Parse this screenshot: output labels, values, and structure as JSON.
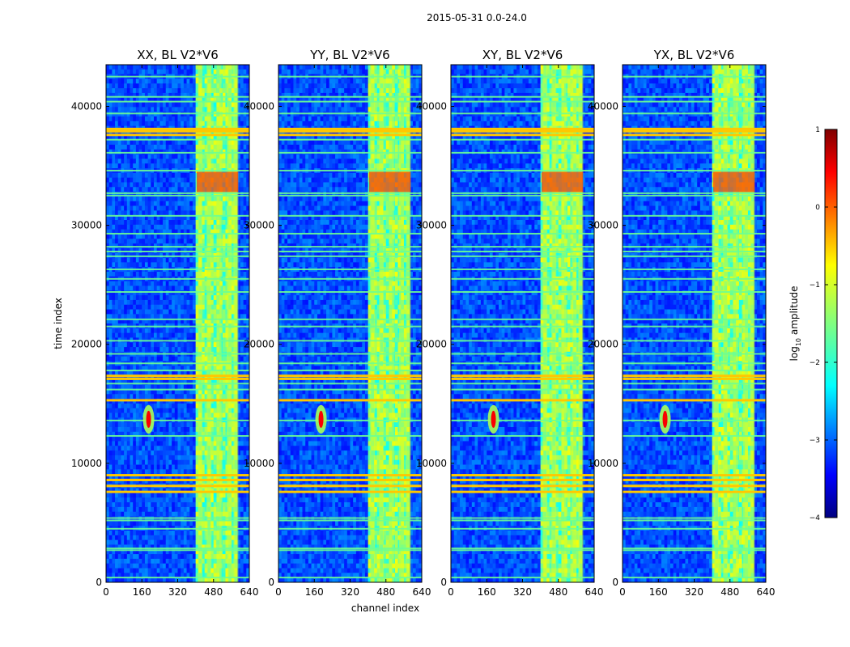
{
  "figure": {
    "suptitle": "2015-05-31 0.0-24.0",
    "xlabel": "channel index",
    "ylabel": "time index"
  },
  "colorbar": {
    "label_main": "log",
    "label_sub": "10",
    "label_tail": " amplitude",
    "ticks": [
      1,
      0,
      -1,
      -2,
      -3,
      -4
    ],
    "tick_labels": [
      "1",
      "0",
      "−1",
      "−2",
      "−3",
      "−4"
    ],
    "range": [
      -4,
      1
    ],
    "colormap": "jet"
  },
  "chart_data": {
    "type": "heatmap",
    "x_range": [
      0,
      640
    ],
    "y_range": [
      0,
      43500
    ],
    "x_ticks": [
      0,
      160,
      320,
      480,
      640
    ],
    "y_ticks": [
      0,
      10000,
      20000,
      30000,
      40000
    ],
    "panels": [
      {
        "title": "XX, BL V2*V6"
      },
      {
        "title": "YY, BL V2*V6"
      },
      {
        "title": "XY, BL V2*V6"
      },
      {
        "title": "YX, BL V2*V6"
      }
    ],
    "rfi_channel_band": [
      405,
      590
    ],
    "rfi_channel_columns": [
      420,
      460,
      505,
      550,
      580
    ],
    "strong_rows": [
      7600,
      8100,
      8600,
      9000,
      15300,
      17100,
      17350,
      37600,
      37900,
      38100
    ],
    "moderate_rows": [
      400,
      2700,
      2850,
      4500,
      5200,
      5400,
      12300,
      13600,
      16200,
      16700,
      17800,
      18400,
      19200,
      20300,
      21500,
      22100,
      24400,
      25500,
      26300,
      27400,
      27800,
      28200,
      29300,
      30800,
      32500,
      32700,
      34600,
      36100,
      37200,
      39400,
      40400,
      40800,
      42500
    ],
    "transient": {
      "channel": 190,
      "time_center": 13700,
      "time_halfwidth": 1200,
      "peak_log_amplitude": 0.4
    },
    "background_log_amplitude": -3,
    "band_log_amplitude": -1.5,
    "burst": {
      "time_range": [
        32800,
        34500
      ],
      "peak_log_amplitude": 0.2
    }
  }
}
